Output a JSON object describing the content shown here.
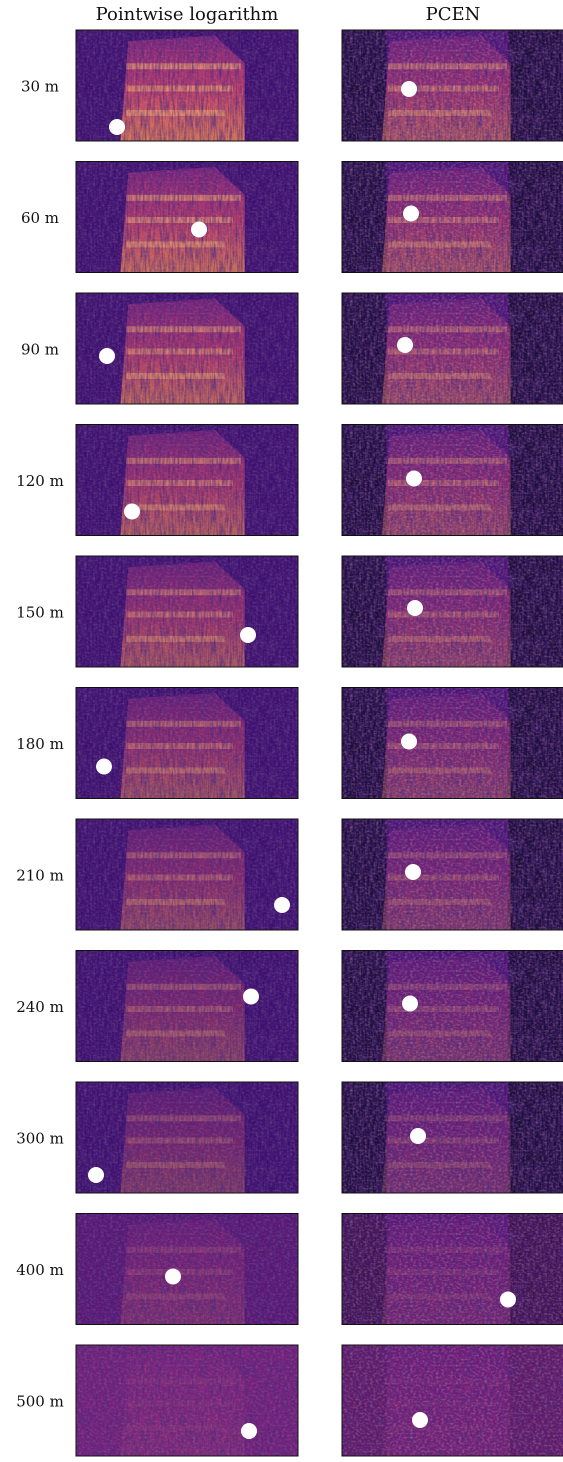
{
  "columns": [
    "Pointwise logarithm",
    "PCEN"
  ],
  "rows": [
    "30 m",
    "60 m",
    "90 m",
    "120 m",
    "150 m",
    "180 m",
    "210 m",
    "240 m",
    "300 m",
    "400 m",
    "500 m"
  ]
}
